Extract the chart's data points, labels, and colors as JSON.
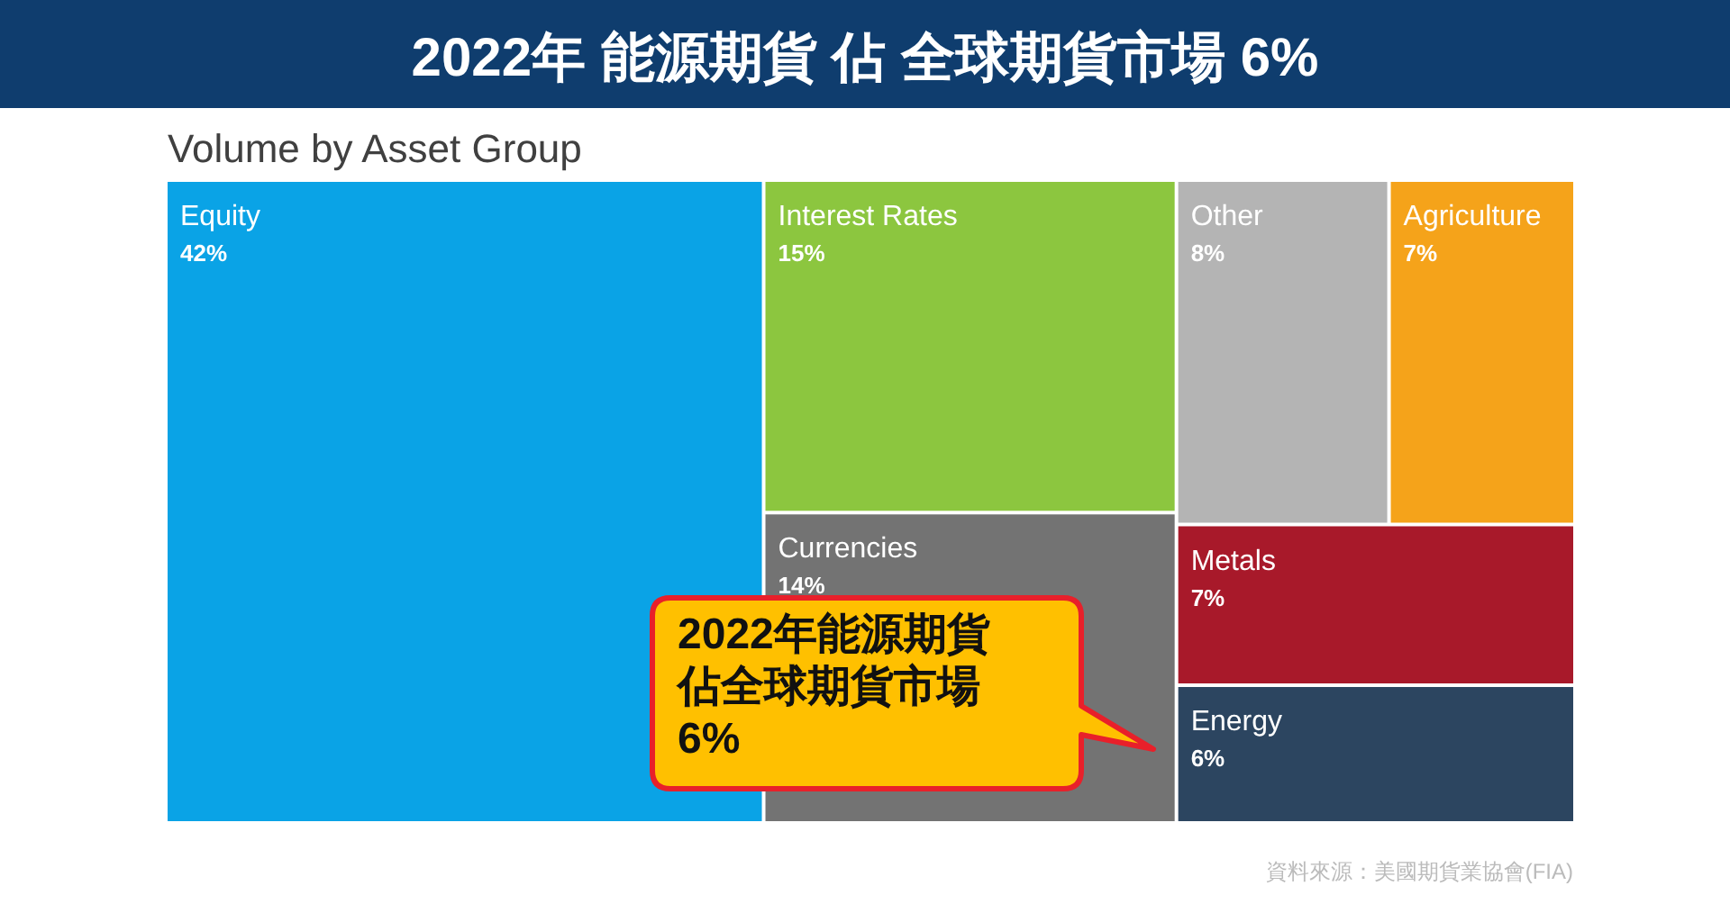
{
  "chart_data": {
    "type": "other",
    "title": "2022年 能源期貨 佔 全球期貨市場 6%",
    "subtitle": "Volume by Asset Group",
    "categories": [
      "Equity",
      "Interest Rates",
      "Currencies",
      "Other",
      "Agriculture",
      "Metals",
      "Energy"
    ],
    "values": [
      42,
      15,
      14,
      8,
      7,
      7,
      6
    ],
    "value_labels": [
      "42%",
      "15%",
      "14%",
      "8%",
      "7%",
      "7%",
      "6%"
    ],
    "colors": [
      "#0aa3e6",
      "#8cc63f",
      "#737373",
      "#b4b4b4",
      "#f5a31a",
      "#a8192a",
      "#2c4560"
    ],
    "annotations": [
      "2022年能源期貨佔全球期貨市場6%",
      "資料來源：美國期貨業協會(FIA)"
    ]
  }
}
